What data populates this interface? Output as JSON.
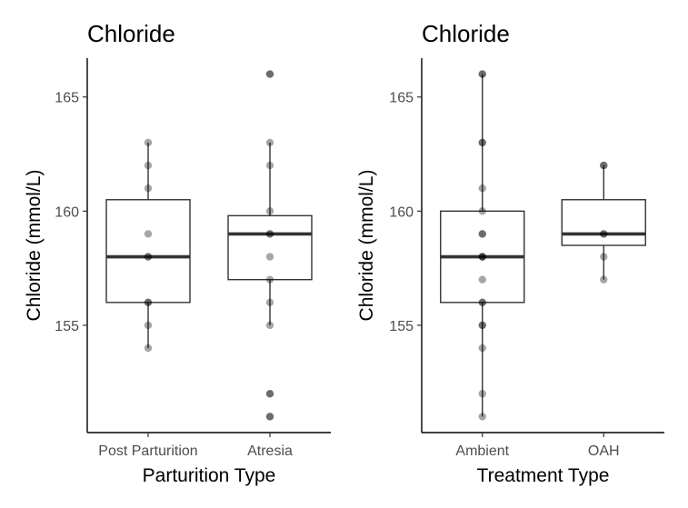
{
  "chart_data": [
    {
      "type": "box",
      "title": "Chloride",
      "xlabel": "Parturition Type",
      "ylabel": "Chloride (mmol/L)",
      "ylim": [
        150.3,
        166.7
      ],
      "yticks": [
        155,
        160,
        165
      ],
      "categories": [
        "Post Parturition",
        "Atresia"
      ],
      "boxes": [
        {
          "q1": 156,
          "median": 158,
          "q3": 160.5,
          "whisker_low": 154,
          "whisker_high": 163
        },
        {
          "q1": 157,
          "median": 159,
          "q3": 159.8,
          "whisker_low": 155,
          "whisker_high": 163
        }
      ],
      "points": [
        [
          163,
          162,
          161,
          159,
          158,
          158,
          156,
          156,
          155,
          154
        ],
        [
          166,
          166,
          163,
          162,
          160,
          159,
          159,
          158,
          157,
          156,
          155,
          152,
          152,
          151,
          151
        ]
      ]
    },
    {
      "type": "box",
      "title": "Chloride",
      "xlabel": "Treatment Type",
      "ylabel": "Chloride (mmol/L)",
      "ylim": [
        150.3,
        166.7
      ],
      "yticks": [
        155,
        160,
        165
      ],
      "categories": [
        "Ambient",
        "OAH"
      ],
      "boxes": [
        {
          "q1": 156,
          "median": 158,
          "q3": 160,
          "whisker_low": 151,
          "whisker_high": 166
        },
        {
          "q1": 158.5,
          "median": 159,
          "q3": 160.5,
          "whisker_low": 157,
          "whisker_high": 162
        }
      ],
      "points": [
        [
          166,
          166,
          163,
          163,
          161,
          160,
          159,
          159,
          158,
          158,
          158,
          157,
          156,
          156,
          155,
          155,
          154,
          152,
          151
        ],
        [
          162,
          162,
          159,
          159,
          158,
          157
        ]
      ]
    }
  ]
}
